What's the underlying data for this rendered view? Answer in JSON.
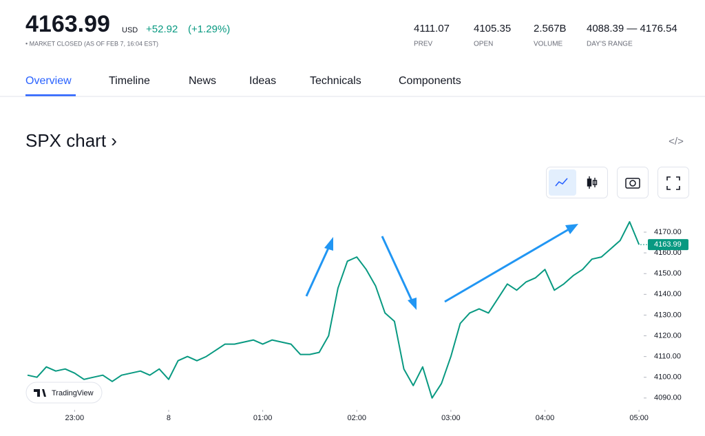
{
  "header": {
    "price": "4163.99",
    "currency": "USD",
    "change": "+52.92",
    "change_pct": "(+1.29%)",
    "status": "• MARKET CLOSED (AS OF FEB 7, 16:04 EST)",
    "stats": [
      {
        "value": "4111.07",
        "label": "PREV"
      },
      {
        "value": "4105.35",
        "label": "OPEN"
      },
      {
        "value": "2.567B",
        "label": "VOLUME"
      },
      {
        "value": "4088.39 — 4176.54",
        "label": "DAY'S RANGE"
      }
    ]
  },
  "tabs": [
    "Overview",
    "Timeline",
    "News",
    "Ideas",
    "Technicals",
    "Components"
  ],
  "section_title": "SPX chart ›",
  "embed": "</>",
  "logo": "TradingView",
  "chart_data": {
    "type": "line",
    "color": "#089981",
    "x": [
      22.5,
      22.6,
      22.7,
      22.8,
      22.9,
      23.0,
      23.1,
      23.2,
      23.3,
      23.4,
      23.5,
      23.6,
      23.7,
      23.8,
      23.9,
      24.0,
      24.1,
      24.2,
      24.3,
      24.4,
      24.5,
      24.6,
      24.7,
      24.8,
      24.9,
      25.0,
      25.1,
      25.2,
      25.3,
      25.4,
      25.5,
      25.6,
      25.7,
      25.8,
      25.9,
      26.0,
      26.1,
      26.2,
      26.3,
      26.4,
      26.5,
      26.6,
      26.7,
      26.8,
      26.9,
      27.0,
      27.1,
      27.2,
      27.3,
      27.4,
      27.5,
      27.6,
      27.7,
      27.8,
      27.9,
      28.0,
      28.1,
      28.2,
      28.3,
      28.4,
      28.5,
      28.6,
      28.7,
      28.8,
      28.9,
      29.0
    ],
    "values": [
      4101,
      4100,
      4105,
      4103,
      4104,
      4102,
      4099,
      4100,
      4101,
      4098,
      4101,
      4102,
      4103,
      4101,
      4104,
      4099,
      4108,
      4110,
      4108,
      4110,
      4113,
      4116,
      4116,
      4117,
      4118,
      4116,
      4118,
      4117,
      4116,
      4111,
      4111,
      4112,
      4120,
      4143,
      4156,
      4158,
      4152,
      4144,
      4131,
      4127,
      4104,
      4096,
      4105,
      4090,
      4097,
      4110,
      4126,
      4131,
      4133,
      4131,
      4138,
      4145,
      4142,
      4146,
      4148,
      4152,
      4142,
      4145,
      4149,
      4152,
      4157,
      4158,
      4162,
      4166,
      4175,
      4164
    ],
    "xlim": [
      22.5,
      29.05
    ],
    "xticks": [
      {
        "value": 23,
        "label": "23:00"
      },
      {
        "value": 24,
        "label": "8"
      },
      {
        "value": 25,
        "label": "01:00"
      },
      {
        "value": 26,
        "label": "02:00"
      },
      {
        "value": 27,
        "label": "03:00"
      },
      {
        "value": 28,
        "label": "04:00"
      },
      {
        "value": 29,
        "label": "05:00"
      }
    ],
    "ylim": [
      4084.3,
      4182.3
    ],
    "yticks": [
      {
        "value": 4090,
        "label": "4090.00"
      },
      {
        "value": 4100,
        "label": "4100.00"
      },
      {
        "value": 4110,
        "label": "4110.00"
      },
      {
        "value": 4120,
        "label": "4120.00"
      },
      {
        "value": 4130,
        "label": "4130.00"
      },
      {
        "value": 4140,
        "label": "4140.00"
      },
      {
        "value": 4150,
        "label": "4150.00"
      },
      {
        "value": 4160,
        "label": "4160.00"
      },
      {
        "value": 4170,
        "label": "4170.00"
      }
    ],
    "last_price": 4163.99
  }
}
